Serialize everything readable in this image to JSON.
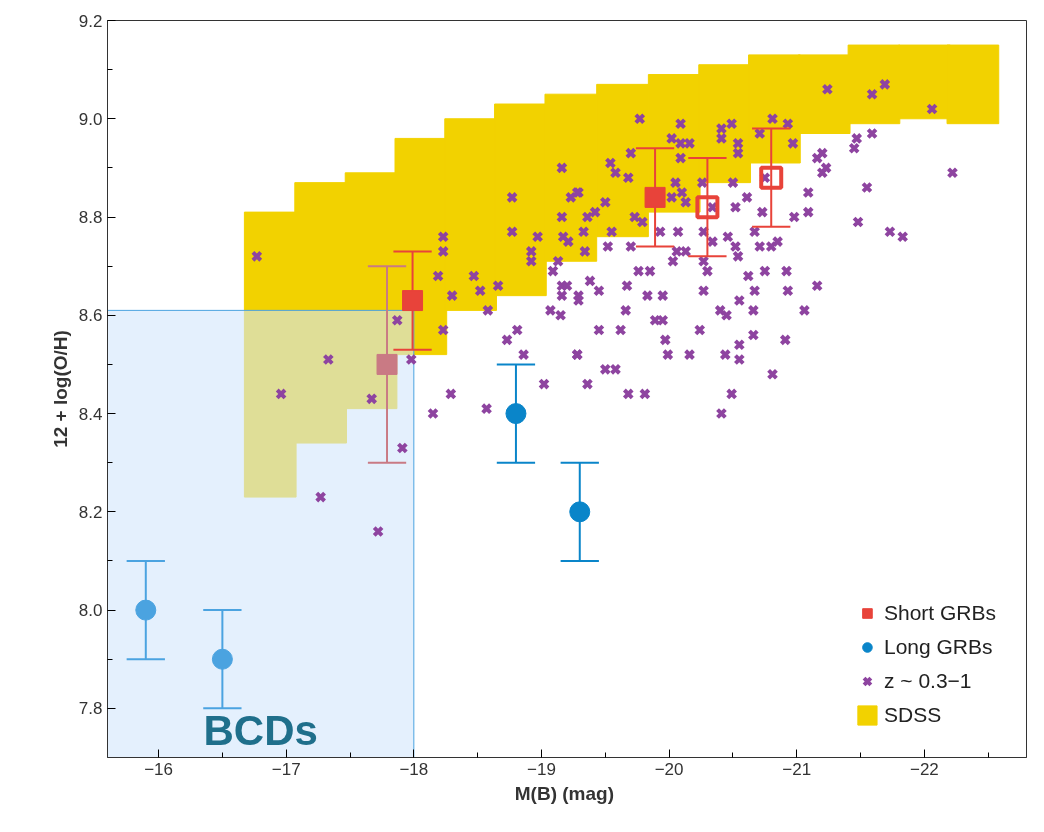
{
  "chart_data": {
    "type": "scatter",
    "xlabel": "M(B)  (mag)",
    "ylabel": "12 + log(O/H)",
    "xlim": [
      -15.6,
      -22.8
    ],
    "ylim": [
      7.7,
      9.2
    ],
    "xticks": [
      {
        "value": -16,
        "label": "−16"
      },
      {
        "value": -17,
        "label": "−17"
      },
      {
        "value": -18,
        "label": "−18"
      },
      {
        "value": -19,
        "label": "−19"
      },
      {
        "value": -20,
        "label": "−20"
      },
      {
        "value": -21,
        "label": "−21"
      },
      {
        "value": -22,
        "label": "−22"
      }
    ],
    "yticks": [
      {
        "value": 7.8,
        "label": "7.8"
      },
      {
        "value": 8.0,
        "label": "8.0"
      },
      {
        "value": 8.2,
        "label": "8.2"
      },
      {
        "value": 8.4,
        "label": "8.4"
      },
      {
        "value": 8.6,
        "label": "8.6"
      },
      {
        "value": 8.8,
        "label": "8.8"
      },
      {
        "value": 9.0,
        "label": "9.0"
      },
      {
        "value": 9.2,
        "label": "9.2"
      }
    ],
    "grid": false,
    "legend": "bottom right",
    "series": [
      {
        "name": "SDSS",
        "type": "bar",
        "color": "#f2d200",
        "x": [
          -16.875,
          -17.27,
          -17.665,
          -18.055,
          -18.445,
          -18.835,
          -19.23,
          -19.635,
          -20.04,
          -20.435,
          -20.825,
          -21.215,
          -21.605,
          -22.0,
          -22.38
        ],
        "base": [
          8.23,
          8.34,
          8.41,
          8.52,
          8.61,
          8.64,
          8.71,
          8.76,
          8.81,
          8.87,
          8.91,
          8.97,
          8.99,
          9.0,
          8.99
        ],
        "values": [
          0.58,
          0.53,
          0.48,
          0.44,
          0.39,
          0.39,
          0.34,
          0.31,
          0.28,
          0.24,
          0.22,
          0.16,
          0.16,
          0.15,
          0.16
        ]
      },
      {
        "name": "BCDs",
        "type": "area",
        "color": "#d2e6fb",
        "x": [
          -15.6,
          -18.0
        ],
        "values": [
          8.61,
          8.61
        ]
      },
      {
        "name": "z ~ 0.3−1",
        "marker": "cross",
        "color": "#8e44a0",
        "x": [
          -16.77,
          -18.23,
          -18.23,
          -18.19,
          -18.3,
          -18.47,
          -18.52,
          -18.66,
          -18.58,
          -18.23,
          -18.77,
          -18.77,
          -18.97,
          -19.16,
          -19.16,
          -19.23,
          -19.28,
          -19.17,
          -18.92,
          -18.92,
          -19.09,
          -19.13,
          -19.16,
          -19.16,
          -19.07,
          -19.15,
          -19.29,
          -18.81,
          -18.73,
          -18.86,
          -19.28,
          -19.02,
          -18.29,
          -18.15,
          -18.57,
          -17.87,
          -17.33,
          -16.96,
          -17.98,
          -17.67,
          -17.91,
          -17.27,
          -17.72,
          -19.77,
          -20.09,
          -20.41,
          -20.49,
          -20.81,
          -20.93,
          -21.24,
          -21.59,
          -21.69,
          -22.06,
          -19.7,
          -20.02,
          -20.09,
          -20.16,
          -20.09,
          -20.41,
          -20.54,
          -20.54,
          -20.71,
          -20.97,
          -21.2,
          -21.16,
          -21.47,
          -21.45,
          -21.59,
          -21.23,
          -21.2,
          -22.22,
          -21.55,
          -21.48,
          -21.73,
          -21.83,
          -21.09,
          -21.09,
          -20.98,
          -19.54,
          -19.58,
          -19.68,
          -19.29,
          -19.5,
          -19.42,
          -19.36,
          -19.73,
          -19.79,
          -19.55,
          -19.33,
          -19.7,
          -19.52,
          -19.34,
          -19.21,
          -20.05,
          -20.1,
          -20.02,
          -20.13,
          -20.26,
          -20.34,
          -20.5,
          -20.52,
          -20.61,
          -20.75,
          -20.73,
          -19.93,
          -20.07,
          -20.06,
          -20.13,
          -20.27,
          -20.34,
          -20.46,
          -20.52,
          -20.67,
          -20.71,
          -20.8,
          -20.85,
          -20.54,
          -20.27,
          -20.03,
          -20.3,
          -20.62,
          -20.75,
          -20.92,
          -19.76,
          -19.85,
          -19.67,
          -19.38,
          -19.45,
          -19.29,
          -19.2,
          -19.83,
          -19.95,
          -20.27,
          -20.67,
          -20.93,
          -21.16,
          -19.66,
          -19.89,
          -19.95,
          -20.4,
          -20.45,
          -20.55,
          -20.66,
          -21.06,
          -19.45,
          -19.62,
          -19.97,
          -20.24,
          -20.66,
          -20.91,
          -20.55,
          -19.28,
          -19.99,
          -20.16,
          -20.44,
          -20.55,
          -19.5,
          -19.58,
          -20.81,
          -19.36,
          -19.68,
          -19.81,
          -20.49,
          -20.41
        ],
        "values": [
          8.72,
          8.76,
          8.73,
          8.68,
          8.64,
          8.68,
          8.65,
          8.66,
          8.61,
          8.57,
          8.84,
          8.77,
          8.76,
          8.9,
          8.8,
          8.84,
          8.85,
          8.76,
          8.73,
          8.71,
          8.69,
          8.71,
          8.66,
          8.64,
          8.61,
          8.6,
          8.63,
          8.57,
          8.55,
          8.52,
          8.52,
          8.46,
          8.44,
          8.4,
          8.41,
          8.59,
          8.51,
          8.44,
          8.51,
          8.43,
          8.33,
          8.23,
          8.16,
          9.0,
          8.99,
          8.98,
          8.99,
          9.0,
          8.99,
          9.06,
          9.05,
          9.07,
          9.02,
          8.93,
          8.96,
          8.95,
          8.95,
          8.92,
          8.96,
          8.95,
          8.93,
          8.97,
          8.95,
          8.93,
          8.92,
          8.96,
          8.94,
          8.97,
          8.9,
          8.89,
          8.89,
          8.86,
          8.79,
          8.77,
          8.76,
          8.85,
          8.81,
          8.8,
          8.91,
          8.89,
          8.88,
          8.85,
          8.83,
          8.81,
          8.8,
          8.8,
          8.79,
          8.77,
          8.77,
          8.74,
          8.74,
          8.73,
          8.75,
          8.87,
          8.85,
          8.84,
          8.83,
          8.87,
          8.82,
          8.87,
          8.82,
          8.84,
          8.88,
          8.81,
          8.77,
          8.77,
          8.73,
          8.73,
          8.77,
          8.75,
          8.76,
          8.74,
          8.77,
          8.74,
          8.74,
          8.75,
          8.72,
          8.71,
          8.71,
          8.69,
          8.68,
          8.69,
          8.69,
          8.69,
          8.69,
          8.66,
          8.67,
          8.65,
          8.64,
          8.66,
          8.64,
          8.64,
          8.65,
          8.65,
          8.65,
          8.66,
          8.61,
          8.59,
          8.59,
          8.61,
          8.6,
          8.63,
          8.61,
          8.61,
          8.57,
          8.57,
          8.55,
          8.57,
          8.56,
          8.55,
          8.54,
          8.52,
          8.52,
          8.52,
          8.52,
          8.51,
          8.49,
          8.49,
          8.48,
          8.46,
          8.44,
          8.44,
          8.44,
          8.4
        ]
      },
      {
        "name": "Short GRBs",
        "marker": "square",
        "color": "#e8433a",
        "colors": [
          "#e8433a",
          "#e8433a",
          "#c97a84"
        ],
        "x": [
          -17.99,
          -19.89,
          -17.79
        ],
        "values": [
          8.63,
          8.84,
          8.5
        ],
        "errors": [
          0.1,
          0.1,
          0.2
        ]
      },
      {
        "marker": "square",
        "color": "#e8433a",
        "x": [
          -20.3,
          -20.8
        ],
        "values": [
          8.82,
          8.88
        ],
        "errors": [
          0.1,
          0.1
        ]
      },
      {
        "name": "Long GRBs",
        "marker": "circle",
        "color": "#0a85c9",
        "colors": [
          "#0a85c9",
          "#0a85c9",
          "#4ba3e0",
          "#4ba3e0"
        ],
        "x": [
          -18.8,
          -19.3,
          -15.9,
          -16.5
        ],
        "values": [
          8.4,
          8.2,
          8.0,
          7.9
        ],
        "errors": [
          0.1,
          0.1,
          0.1,
          0.1
        ]
      }
    ]
  }
}
